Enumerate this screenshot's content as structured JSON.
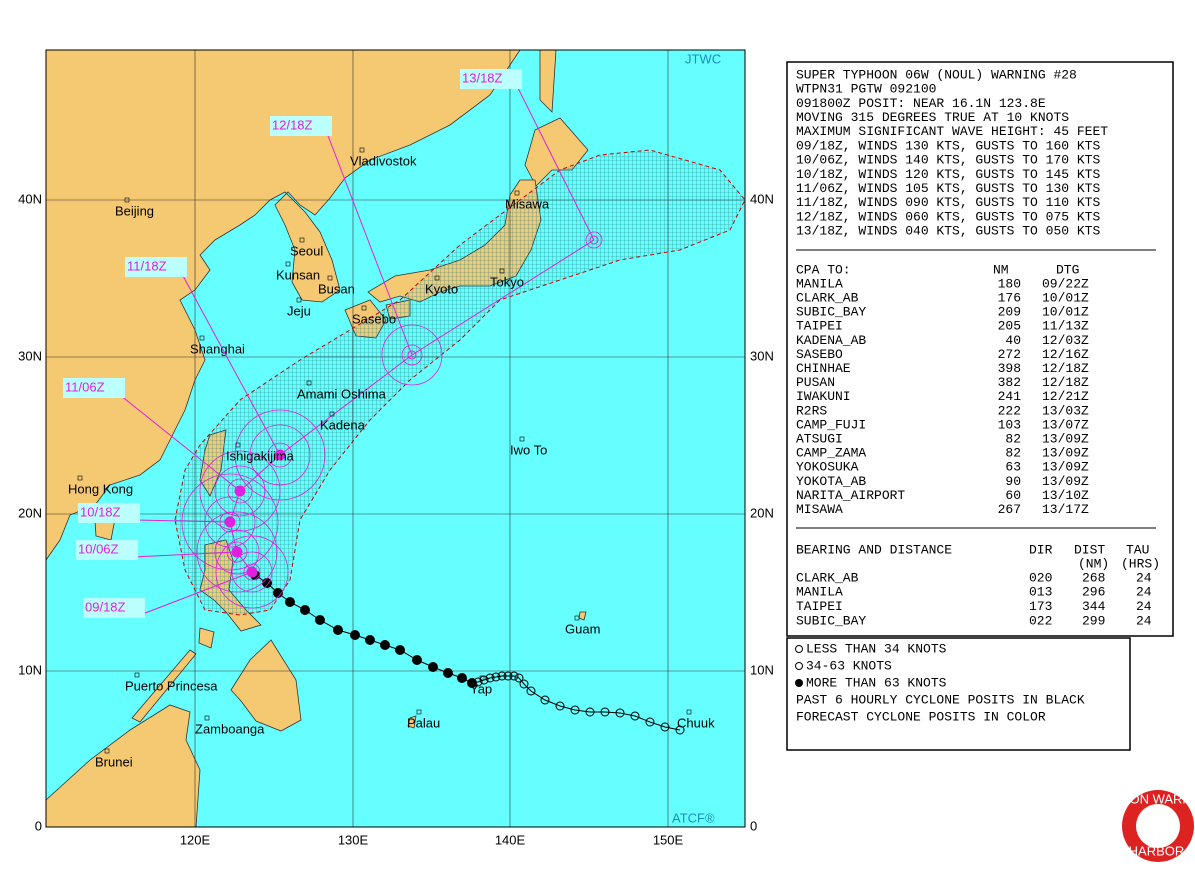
{
  "map": {
    "corner_top": "JTWC",
    "corner_bottom": "ATCF®",
    "lat_labels": [
      "40N",
      "30N",
      "20N",
      "10N",
      "0"
    ],
    "lon_labels": [
      "120E",
      "130E",
      "140E",
      "150E"
    ],
    "places": [
      "Vladivostok",
      "Beijing",
      "Seoul",
      "Kunsan",
      "Busan",
      "Jeju",
      "Sasebo",
      "Kyoto",
      "Tokyo",
      "Misawa",
      "Shanghai",
      "Amami Oshima",
      "Kadena",
      "Ishigakijima",
      "Iwo To",
      "Hong Kong",
      "Guam",
      "Puerto Princesa",
      "Palau",
      "Zamboanga",
      "Brunei",
      "Chuuk",
      "Yap"
    ],
    "forecast_labels": [
      "13/18Z",
      "12/18Z",
      "11/18Z",
      "11/06Z",
      "10/18Z",
      "10/06Z",
      "09/18Z"
    ]
  },
  "warning": {
    "lines": [
      "SUPER TYPHOON 06W (NOUL) WARNING #28",
      "WTPN31 PGTW 092100",
      "091800Z POSIT: NEAR 16.1N 123.8E",
      "MOVING 315 DEGREES TRUE AT 10 KNOTS",
      "MAXIMUM SIGNIFICANT WAVE HEIGHT: 45 FEET",
      "09/18Z, WINDS 130 KTS, GUSTS TO 160 KTS",
      "10/06Z, WINDS 140 KTS, GUSTS TO 170 KTS",
      "10/18Z, WINDS 120 KTS, GUSTS TO 145 KTS",
      "11/06Z, WINDS 105 KTS, GUSTS TO 130 KTS",
      "11/18Z, WINDS 090 KTS, GUSTS TO 110 KTS",
      "12/18Z, WINDS 060 KTS, GUSTS TO 075 KTS",
      "13/18Z, WINDS 040 KTS, GUSTS TO 050 KTS"
    ]
  },
  "cpa": {
    "title": "CPA TO:",
    "col_nm": "NM",
    "col_dtg": "DTG",
    "rows": [
      [
        "MANILA",
        "180",
        "09/22Z"
      ],
      [
        "CLARK_AB",
        "176",
        "10/01Z"
      ],
      [
        "SUBIC_BAY",
        "209",
        "10/01Z"
      ],
      [
        "TAIPEI",
        "205",
        "11/13Z"
      ],
      [
        "KADENA_AB",
        "40",
        "12/03Z"
      ],
      [
        "SASEBO",
        "272",
        "12/16Z"
      ],
      [
        "CHINHAE",
        "398",
        "12/18Z"
      ],
      [
        "PUSAN",
        "382",
        "12/18Z"
      ],
      [
        "IWAKUNI",
        "241",
        "12/21Z"
      ],
      [
        "R2RS",
        "222",
        "13/03Z"
      ],
      [
        "CAMP_FUJI",
        "103",
        "13/07Z"
      ],
      [
        "ATSUGI",
        "82",
        "13/09Z"
      ],
      [
        "CAMP_ZAMA",
        "82",
        "13/09Z"
      ],
      [
        "YOKOSUKA",
        "63",
        "13/09Z"
      ],
      [
        "YOKOTA_AB",
        "90",
        "13/09Z"
      ],
      [
        "NARITA_AIRPORT",
        "60",
        "13/10Z"
      ],
      [
        "MISAWA",
        "267",
        "13/17Z"
      ]
    ]
  },
  "bearing": {
    "title": "BEARING AND DISTANCE",
    "col_dir": "DIR",
    "col_dist": "DIST",
    "col_tau": "TAU",
    "sub_dist": "(NM)",
    "sub_tau": "(HRS)",
    "rows": [
      [
        "CLARK_AB",
        "020",
        "268",
        "24"
      ],
      [
        "MANILA",
        "013",
        "296",
        "24"
      ],
      [
        "TAIPEI",
        "173",
        "344",
        "24"
      ],
      [
        "SUBIC_BAY",
        "022",
        "299",
        "24"
      ]
    ]
  },
  "legend": {
    "lines": [
      "LESS THAN 34 KNOTS",
      "34-63 KNOTS",
      "MORE THAN 63 KNOTS",
      "PAST 6 HOURLY CYCLONE POSITS IN BLACK",
      "FORECAST CYCLONE POSITS IN COLOR"
    ]
  },
  "logo": {
    "top": "JOINT TYPHOON WARNING CENTER",
    "bottom": "PEARL HARBOR HAWAII"
  }
}
